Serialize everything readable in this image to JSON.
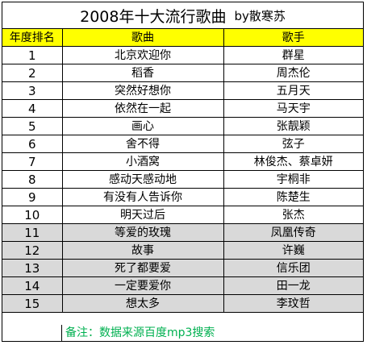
{
  "title": {
    "main": "2008年十大流行歌曲",
    "byline": "by散寒苏"
  },
  "table": {
    "headers": [
      "年度排名",
      "歌曲",
      "歌手"
    ],
    "rows": [
      {
        "rank": "1",
        "song": "北京欢迎你",
        "singer": "群星",
        "highlight": false
      },
      {
        "rank": "2",
        "song": "稻香",
        "singer": "周杰伦",
        "highlight": false
      },
      {
        "rank": "3",
        "song": "突然好想你",
        "singer": "五月天",
        "highlight": false
      },
      {
        "rank": "4",
        "song": "依然在一起",
        "singer": "马天宇",
        "highlight": false
      },
      {
        "rank": "5",
        "song": "画心",
        "singer": "张靓颖",
        "highlight": false
      },
      {
        "rank": "6",
        "song": "舍不得",
        "singer": "弦子",
        "highlight": false
      },
      {
        "rank": "7",
        "song": "小酒窝",
        "singer": "林俊杰、蔡卓妍",
        "highlight": false
      },
      {
        "rank": "8",
        "song": "感动天感动地",
        "singer": "宇桐非",
        "highlight": false
      },
      {
        "rank": "9",
        "song": "有没有人告诉你",
        "singer": "陈楚生",
        "highlight": false
      },
      {
        "rank": "10",
        "song": "明天过后",
        "singer": "张杰",
        "highlight": false
      },
      {
        "rank": "11",
        "song": "等爱的玫瑰",
        "singer": "凤凰传奇",
        "highlight": true
      },
      {
        "rank": "12",
        "song": "故事",
        "singer": "许巍",
        "highlight": true
      },
      {
        "rank": "13",
        "song": "死了都要爱",
        "singer": "信乐团",
        "highlight": true
      },
      {
        "rank": "14",
        "song": "一定要爱你",
        "singer": "田一龙",
        "highlight": true
      },
      {
        "rank": "15",
        "song": "想太多",
        "singer": "李玟哲",
        "highlight": true
      }
    ]
  },
  "note": "备注：数据来源百度mp3搜索",
  "colors": {
    "header_bg": "#ffff00",
    "highlight_bg": "#d9d9d9",
    "note_text": "#00b050"
  }
}
